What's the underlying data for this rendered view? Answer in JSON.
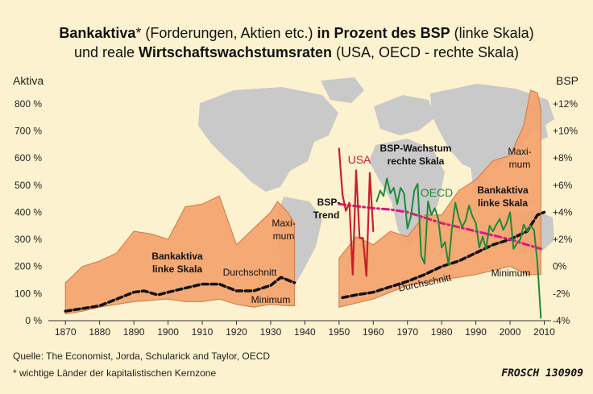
{
  "title": {
    "line1_bold_a": "Bankaktiva",
    "line1_normal_a": "* (Forderungen, Aktien etc.)",
    "line1_bold_b": " in Prozent des BSP",
    "line1_normal_b": " (linke Skala)",
    "line2_normal_a": "und reale ",
    "line2_bold": "Wirtschaftswachstumsraten",
    "line2_normal_b": " (USA, OECD - rechte Skala)"
  },
  "left_axis_label": "Aktiva",
  "right_axis_label": "BSP",
  "source": "Quelle: The Economist, Jorda, Schularick and Taylor, OECD",
  "footnote": "* wichtige Länder der kapitalistischen Kernzone",
  "signature": "FROSCH 130909",
  "annotations": {
    "bank_left_1": "Bankaktiva",
    "bank_left_2": "linke Skala",
    "avg_left": "Durchschnitt",
    "min_left": "Minimum",
    "max_left_1": "Maxi-",
    "max_left_2": "mum",
    "usa": "USA",
    "bsp_trend_1": "BSP-",
    "bsp_trend_2": "Trend",
    "bsp_growth_1": "BSP-Wachstum",
    "bsp_growth_2": "rechte Skala",
    "oecd": "OECD",
    "bank_right_1": "Bankaktiva",
    "bank_right_2": "linke Skala",
    "max_right_1": "Maxi-",
    "max_right_2": "mum",
    "avg_right": "Durchschnitt",
    "min_right": "Minimum"
  },
  "colors": {
    "background": "#fdf2cf",
    "band_fill": "#f4a46f",
    "band_stroke": "#c87a4a",
    "average": "#111111",
    "usa": "#c8202a",
    "oecd": "#1f8a3a",
    "trend": "#e0177e",
    "map": "#c9c9c9"
  },
  "chart_data": {
    "type": "area",
    "xlim": [
      1865,
      2012
    ],
    "x_ticks": [
      "1870",
      "1880",
      "1890",
      "1900",
      "1910",
      "1920",
      "1930",
      "1940",
      "1950",
      "1960",
      "1970",
      "1980",
      "1990",
      "2000",
      "2010"
    ],
    "y_left": {
      "label": "Aktiva",
      "range": [
        0,
        850
      ],
      "ticks": [
        "0 %",
        "100 %",
        "200 %",
        "300 %",
        "400 %",
        "500 %",
        "600 %",
        "700 %",
        "800 %"
      ]
    },
    "y_right": {
      "label": "BSP",
      "range": [
        -4,
        13
      ],
      "ticks": [
        "-4%",
        "-2%",
        "0%",
        "+2%",
        "+4%",
        "+6%",
        "+8%",
        "+10%",
        "+12%"
      ]
    },
    "series": [
      {
        "name": "Bankaktiva Maximum",
        "axis": "left",
        "x": [
          1870,
          1875,
          1880,
          1885,
          1890,
          1895,
          1900,
          1905,
          1910,
          1915,
          1920,
          1925,
          1930,
          1932,
          1935,
          1937,
          1950,
          1955,
          1960,
          1965,
          1970,
          1975,
          1980,
          1985,
          1990,
          1995,
          2000,
          2004,
          2006,
          2008,
          2009
        ],
        "y": [
          140,
          200,
          220,
          250,
          330,
          320,
          300,
          420,
          430,
          460,
          280,
          340,
          400,
          440,
          400,
          360,
          230,
          310,
          280,
          330,
          310,
          390,
          390,
          480,
          520,
          590,
          610,
          720,
          850,
          840,
          780
        ]
      },
      {
        "name": "Bankaktiva Minimum",
        "axis": "left",
        "x": [
          1870,
          1875,
          1880,
          1885,
          1890,
          1895,
          1900,
          1905,
          1910,
          1915,
          1920,
          1925,
          1930,
          1935,
          1937,
          1950,
          1960,
          1970,
          1980,
          1990,
          2000,
          2005,
          2009
        ],
        "y": [
          25,
          35,
          50,
          60,
          70,
          75,
          80,
          70,
          70,
          80,
          60,
          50,
          60,
          55,
          55,
          50,
          80,
          130,
          150,
          170,
          200,
          170,
          170
        ]
      },
      {
        "name": "Durchschnitt",
        "axis": "left",
        "x": [
          1870,
          1875,
          1880,
          1885,
          1890,
          1893,
          1897,
          1900,
          1905,
          1910,
          1915,
          1920,
          1925,
          1930,
          1933,
          1937,
          1951,
          1955,
          1960,
          1965,
          1970,
          1975,
          1980,
          1985,
          1990,
          1995,
          2000,
          2005,
          2008,
          2010
        ],
        "y": [
          35,
          45,
          55,
          80,
          105,
          110,
          95,
          105,
          120,
          135,
          135,
          110,
          110,
          130,
          160,
          140,
          85,
          95,
          105,
          125,
          145,
          170,
          200,
          220,
          250,
          280,
          300,
          330,
          390,
          400
        ]
      },
      {
        "name": "USA",
        "axis": "right",
        "x": [
          1950,
          1951,
          1952,
          1953,
          1954,
          1955,
          1956,
          1957,
          1958,
          1959,
          1960
        ],
        "y": [
          8.7,
          5.3,
          4.1,
          4.7,
          -0.6,
          7.1,
          2.1,
          2.1,
          -0.7,
          6.9,
          2.6
        ]
      },
      {
        "name": "OECD",
        "axis": "right",
        "x": [
          1961,
          1962,
          1963,
          1964,
          1965,
          1966,
          1967,
          1968,
          1969,
          1970,
          1971,
          1972,
          1973,
          1974,
          1975,
          1976,
          1977,
          1978,
          1979,
          1980,
          1981,
          1982,
          1983,
          1984,
          1985,
          1986,
          1987,
          1988,
          1989,
          1990,
          1991,
          1992,
          1993,
          1994,
          1995,
          1996,
          1997,
          1998,
          1999,
          2000,
          2001,
          2002,
          2003,
          2004,
          2005,
          2006,
          2007,
          2008,
          2009
        ],
        "y": [
          4.8,
          5.6,
          5.2,
          6.5,
          5.4,
          5.8,
          4.6,
          5.8,
          5.4,
          2.8,
          3.7,
          5.6,
          6.1,
          0.8,
          0.2,
          4.8,
          3.8,
          4.3,
          3.5,
          1.4,
          1.8,
          0.1,
          2.8,
          4.7,
          3.6,
          2.9,
          3.4,
          4.5,
          3.7,
          3.2,
          1.4,
          2.2,
          1.3,
          3.0,
          2.6,
          3.1,
          3.5,
          2.7,
          3.2,
          4.0,
          1.3,
          1.7,
          2.0,
          3.1,
          2.6,
          3.0,
          2.7,
          0.3,
          -3.8
        ]
      },
      {
        "name": "BSP-Trend",
        "axis": "right",
        "x": [
          1950,
          1960,
          1965,
          1970,
          1975,
          1980,
          1985,
          1990,
          1995,
          2000,
          2005,
          2009
        ],
        "y": [
          4.6,
          4.3,
          4.2,
          4.0,
          3.6,
          3.2,
          2.9,
          2.6,
          2.3,
          2.0,
          1.6,
          1.3
        ]
      }
    ]
  }
}
